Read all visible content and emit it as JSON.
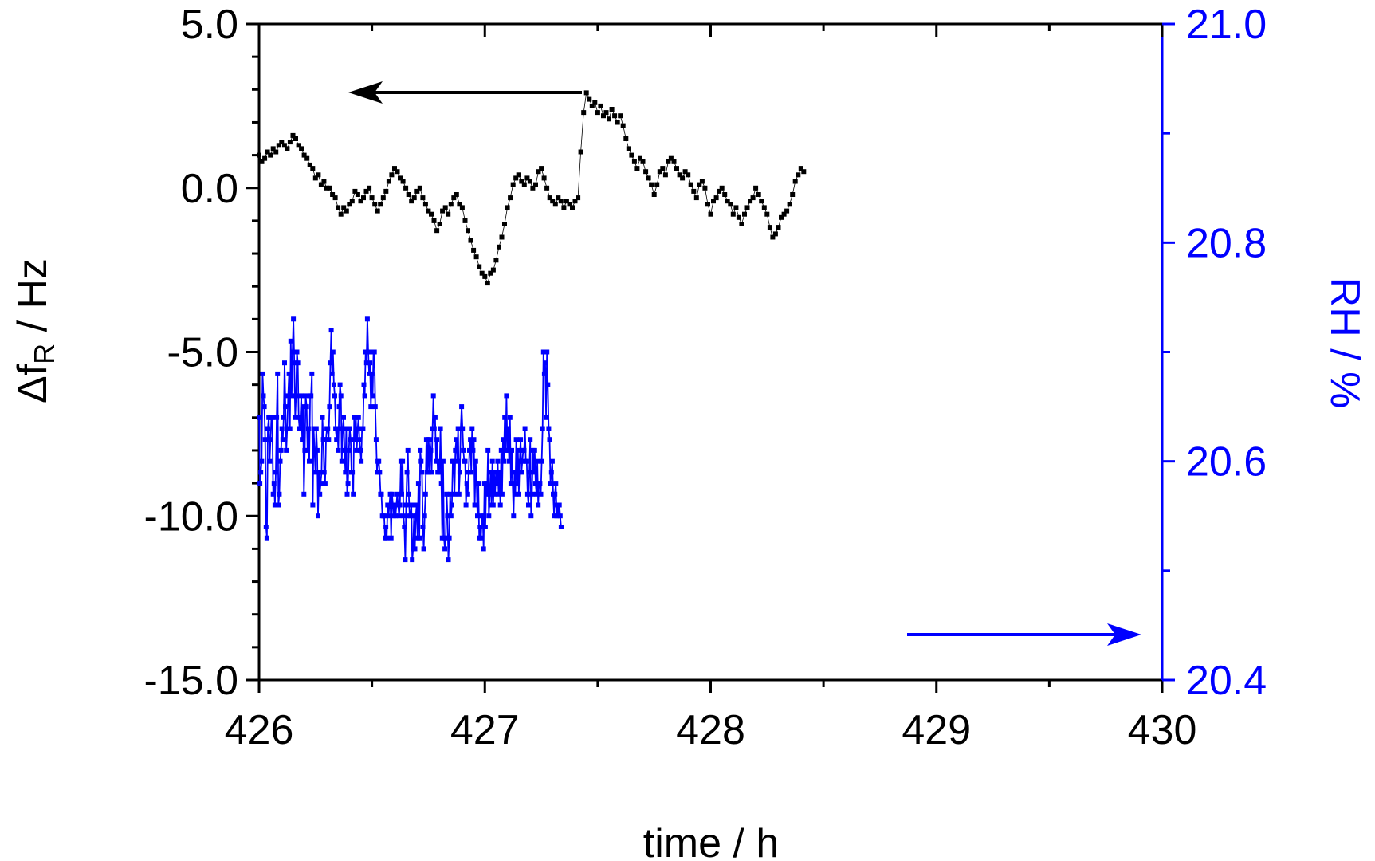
{
  "chart_data": {
    "type": "scatter",
    "xlabel": "time / h",
    "ylabel_left": {
      "main": "Δf",
      "sub": "R",
      "rest": " / Hz"
    },
    "ylabel_right": "RH / %",
    "xlim": [
      426,
      430
    ],
    "ylim_left": [
      -15,
      5
    ],
    "ylim_right": [
      20.4,
      21.0
    ],
    "x_ticks": [
      "426",
      "427",
      "428",
      "429",
      "430"
    ],
    "y_left_ticks": [
      "5.0",
      "0.0",
      "-5.0",
      "-10.0",
      "-15.0"
    ],
    "y_right_ticks": [
      "21.0",
      "20.8",
      "20.6",
      "20.4"
    ],
    "grid": false,
    "colors": {
      "freq": "#000000",
      "rh": "#0000ff"
    },
    "series": [
      {
        "axis": "left",
        "marker": "square",
        "line": "thin",
        "x_start": 426.0,
        "x_step": 0.0125,
        "values": [
          1.0,
          0.8,
          0.9,
          1.1,
          1.0,
          1.2,
          1.1,
          1.3,
          1.4,
          1.3,
          1.2,
          1.4,
          1.6,
          1.5,
          1.3,
          1.2,
          1.0,
          0.9,
          0.7,
          0.6,
          0.3,
          0.4,
          0.1,
          0.2,
          0.0,
          0.0,
          -0.2,
          -0.3,
          -0.6,
          -0.8,
          -0.6,
          -0.7,
          -0.5,
          -0.4,
          -0.1,
          -0.2,
          -0.4,
          -0.3,
          -0.1,
          0.0,
          -0.3,
          -0.5,
          -0.7,
          -0.5,
          -0.3,
          -0.1,
          0.2,
          0.4,
          0.6,
          0.5,
          0.3,
          0.2,
          0.0,
          -0.2,
          -0.4,
          -0.3,
          -0.1,
          0.0,
          -0.3,
          -0.5,
          -0.7,
          -0.8,
          -1.0,
          -1.3,
          -1.1,
          -0.7,
          -0.6,
          -0.8,
          -0.5,
          -0.3,
          -0.2,
          -0.5,
          -0.6,
          -1.0,
          -1.3,
          -1.6,
          -1.9,
          -2.1,
          -2.4,
          -2.6,
          -2.7,
          -2.9,
          -2.6,
          -2.5,
          -2.2,
          -1.8,
          -1.5,
          -1.1,
          -0.6,
          -0.3,
          0.1,
          0.3,
          0.4,
          0.2,
          0.1,
          0.3,
          0.2,
          0.0,
          0.1,
          0.5,
          0.6,
          0.3,
          0.0,
          -0.3,
          -0.4,
          -0.5,
          -0.3,
          -0.4,
          -0.6,
          -0.4,
          -0.5,
          -0.6,
          -0.4,
          -0.3,
          1.1,
          2.3,
          2.9,
          2.7,
          2.5,
          2.6,
          2.3,
          2.5,
          2.2,
          2.3,
          2.1,
          2.4,
          2.2,
          2.0,
          2.2,
          1.9,
          1.5,
          1.2,
          1.0,
          0.8,
          0.6,
          0.9,
          0.8,
          0.5,
          0.3,
          0.1,
          -0.2,
          0.1,
          0.5,
          0.6,
          0.4,
          0.8,
          0.9,
          0.8,
          0.6,
          0.4,
          0.3,
          0.5,
          0.4,
          0.1,
          -0.1,
          -0.3,
          0.1,
          0.2,
          0.0,
          -0.5,
          -0.8,
          -0.4,
          -0.3,
          -0.1,
          0.0,
          -0.2,
          -0.4,
          -0.5,
          -0.8,
          -0.6,
          -0.9,
          -1.1,
          -0.8,
          -0.6,
          -0.4,
          -0.3,
          0.0,
          -0.2,
          -0.4,
          -0.6,
          -0.8,
          -1.2,
          -1.5,
          -1.4,
          -1.2,
          -0.9,
          -0.8,
          -0.7,
          -0.5,
          -0.2,
          0.2,
          0.4,
          0.6,
          0.5
        ]
      },
      {
        "axis": "right",
        "marker": "square",
        "line": "thin",
        "x_start": 426.0,
        "x_step": 0.0039,
        "values": [
          20.64,
          20.58,
          20.59,
          20.6,
          20.68,
          20.66,
          20.65,
          20.62,
          20.54,
          20.53,
          20.63,
          20.64,
          20.6,
          20.62,
          20.64,
          20.64,
          20.57,
          20.58,
          20.56,
          20.59,
          20.64,
          20.68,
          20.56,
          20.57,
          20.6,
          20.61,
          20.63,
          20.62,
          20.64,
          20.69,
          20.65,
          20.61,
          20.63,
          20.66,
          20.68,
          20.63,
          20.71,
          20.66,
          20.7,
          20.73,
          20.69,
          20.64,
          20.66,
          20.7,
          20.69,
          20.64,
          20.63,
          20.64,
          20.66,
          20.62,
          20.65,
          20.57,
          20.61,
          20.66,
          20.65,
          20.61,
          20.63,
          20.6,
          20.66,
          20.66,
          20.68,
          20.56,
          20.63,
          20.61,
          20.59,
          20.63,
          20.61,
          20.55,
          20.59,
          20.57,
          20.58,
          20.59,
          20.64,
          20.62,
          20.59,
          20.58,
          20.62,
          20.63,
          20.63,
          20.62,
          20.65,
          20.69,
          20.72,
          20.68,
          20.7,
          20.67,
          20.66,
          20.63,
          20.62,
          20.63,
          20.61,
          20.65,
          20.67,
          20.66,
          20.6,
          20.63,
          20.64,
          20.61,
          20.59,
          20.63,
          20.57,
          20.58,
          20.61,
          20.63,
          20.62,
          20.59,
          20.59,
          20.57,
          20.64,
          20.62,
          20.64,
          20.61,
          20.63,
          20.64,
          20.62,
          20.61,
          20.6,
          20.63,
          20.63,
          20.67,
          20.66,
          20.7,
          20.69,
          20.73,
          20.7,
          20.68,
          20.69,
          20.65,
          20.68,
          20.66,
          20.7,
          20.7,
          20.65,
          20.62,
          20.59,
          20.6,
          20.6,
          20.59,
          20.57,
          20.57,
          20.55,
          20.55,
          20.55,
          20.53,
          20.54,
          20.53,
          20.56,
          20.55,
          20.56,
          20.57,
          20.53,
          20.57,
          20.56,
          20.55,
          20.56,
          20.55,
          20.56,
          20.57,
          20.56,
          20.55,
          20.56,
          20.6,
          20.57,
          20.6,
          20.55,
          20.54,
          20.51,
          20.56,
          20.59,
          20.61,
          20.57,
          20.55,
          20.55,
          20.56,
          20.51,
          20.52,
          20.55,
          20.52,
          20.55,
          20.56,
          20.53,
          20.58,
          20.53,
          20.61,
          20.6,
          20.59,
          20.54,
          20.52,
          20.55,
          20.57,
          20.62,
          20.59,
          20.62,
          20.59,
          20.62,
          20.61,
          20.59,
          20.63,
          20.66,
          20.63,
          20.64,
          20.6,
          20.62,
          20.59,
          20.6,
          20.59,
          20.63,
          20.58,
          20.53,
          20.6,
          20.53,
          20.52,
          20.53,
          20.57,
          20.55,
          20.51,
          20.53,
          20.57,
          20.55,
          20.56,
          20.6,
          20.6,
          20.57,
          20.61,
          20.62,
          20.6,
          20.63,
          20.57,
          20.59,
          20.63,
          20.65,
          20.63,
          20.61,
          20.6,
          20.6,
          20.56,
          20.58,
          20.57,
          20.59,
          20.61,
          20.62,
          20.59,
          20.63,
          20.61,
          20.62,
          20.56,
          20.6,
          20.58,
          20.55,
          20.58,
          20.53,
          20.54,
          20.53,
          20.55,
          20.55,
          20.52,
          20.58,
          20.54,
          20.58,
          20.57,
          20.61,
          20.55,
          20.57,
          20.59,
          20.56,
          20.6,
          20.56,
          20.59,
          20.57,
          20.59,
          20.58,
          20.6,
          20.57,
          20.59,
          20.56,
          20.61,
          20.57,
          20.62,
          20.6,
          20.64,
          20.61,
          20.66,
          20.61,
          20.63,
          20.6,
          20.64,
          20.58,
          20.61,
          20.58,
          20.55,
          20.59,
          20.57,
          20.62,
          20.58,
          20.61,
          20.57,
          20.6,
          20.62,
          20.59,
          20.6,
          20.61,
          20.61,
          20.63,
          20.6,
          20.6,
          20.57,
          20.56,
          20.59,
          20.62,
          20.55,
          20.57,
          20.61,
          20.59,
          20.61,
          20.58,
          20.57,
          20.6,
          20.56,
          20.58,
          20.58,
          20.57,
          20.6,
          20.63,
          20.7,
          20.68,
          20.69,
          20.64,
          20.7,
          20.67,
          20.63,
          20.62,
          20.58,
          20.59,
          20.6,
          20.57,
          20.55,
          20.57,
          20.58,
          20.55,
          20.56,
          20.55,
          20.56,
          20.55,
          20.54,
          20.54
        ]
      }
    ],
    "annotations": [
      "left-arrow",
      "right-arrow"
    ]
  }
}
